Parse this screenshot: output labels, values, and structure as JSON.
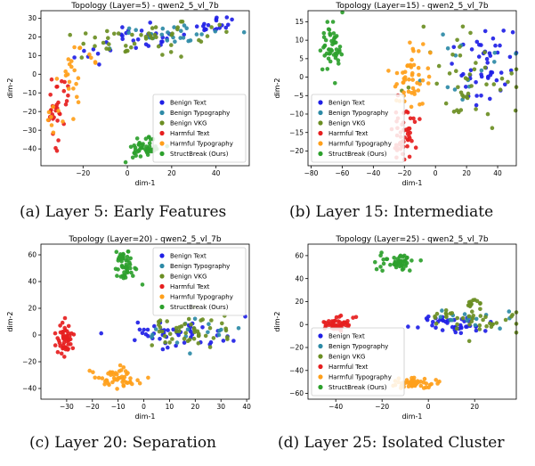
{
  "captions": [
    "(a) Layer 5: Early Features",
    "(b) Layer 15: Intermediate",
    "(c) Layer 20: Separation",
    "(d) Layer 25: Isolated Cluster"
  ],
  "legend_labels": [
    "Benign Text",
    "Benign Typography",
    "Benign VKG",
    "Harmful Text",
    "Harmful Typography",
    "StructBreak (Ours)"
  ],
  "series_colors": [
    "#1f1fe6",
    "#2d8aa6",
    "#6b8e23",
    "#e61e1e",
    "#ff9f1a",
    "#2ca02c"
  ],
  "chart_data": [
    {
      "type": "scatter",
      "title": "Topology (Layer=5) - qwen2_5_vl_7b",
      "xlabel": "dim-1",
      "ylabel": "dim-2",
      "xlim": [
        -39,
        55
      ],
      "ylim": [
        -49,
        34
      ],
      "xticks": [
        -20,
        0,
        20,
        40
      ],
      "yticks": [
        -40,
        -30,
        -20,
        -10,
        0,
        10,
        20,
        30
      ],
      "legend_position": "lower-right",
      "series": [
        {
          "name": "Benign Text",
          "clusters": [
            {
              "cx": 5,
              "cy": 19,
              "sx": 11,
              "sy": 3.5,
              "n": 26
            },
            {
              "cx": 40,
              "cy": 26,
              "sx": 6,
              "sy": 2.5,
              "n": 18
            },
            {
              "cx": -18,
              "cy": 12,
              "sx": 4,
              "sy": 3,
              "n": 6
            }
          ]
        },
        {
          "name": "Benign Typography",
          "clusters": [
            {
              "cx": 20,
              "cy": 22,
              "sx": 14,
              "sy": 3,
              "n": 26
            }
          ]
        },
        {
          "name": "Benign VKG",
          "clusters": [
            {
              "cx": 15,
              "cy": 20,
              "sx": 17,
              "sy": 4,
              "n": 40
            },
            {
              "cx": -5,
              "cy": 15,
              "sx": 6,
              "sy": 3,
              "n": 8
            }
          ]
        },
        {
          "name": "Harmful Text",
          "clusters": [
            {
              "cx": -33,
              "cy": -22,
              "sx": 2.2,
              "sy": 7,
              "n": 22
            },
            {
              "cx": -29,
              "cy": -8,
              "sx": 2,
              "sy": 3,
              "n": 10
            }
          ]
        },
        {
          "name": "Harmful Typography",
          "clusters": [
            {
              "cx": -27,
              "cy": -2,
              "sx": 3,
              "sy": 7,
              "n": 16
            },
            {
              "cx": -33,
              "cy": -25,
              "sx": 1.8,
              "sy": 5,
              "n": 8
            },
            {
              "cx": -20,
              "cy": 8,
              "sx": 3,
              "sy": 4,
              "n": 8
            }
          ]
        },
        {
          "name": "StructBreak (Ours)",
          "clusters": [
            {
              "cx": 8,
              "cy": -40,
              "sx": 4.5,
              "sy": 2.5,
              "n": 50
            }
          ]
        }
      ]
    },
    {
      "type": "scatter",
      "title": "Topology (Layer=15) - qwen2_5_vl_7b",
      "xlabel": "dim-1",
      "ylabel": "dim-2",
      "xlim": [
        -82,
        52
      ],
      "ylim": [
        -24,
        18
      ],
      "xticks": [
        -80,
        -60,
        -40,
        -20,
        0,
        20,
        40
      ],
      "yticks": [
        -20,
        -15,
        -10,
        -5,
        0,
        5,
        10,
        15
      ],
      "legend_position": "lower-left",
      "series": [
        {
          "name": "Benign Text",
          "clusters": [
            {
              "cx": 32,
              "cy": 4,
              "sx": 9,
              "sy": 5,
              "n": 50
            }
          ]
        },
        {
          "name": "Benign Typography",
          "clusters": [
            {
              "cx": 25,
              "cy": 2,
              "sx": 12,
              "sy": 6,
              "n": 14
            }
          ]
        },
        {
          "name": "Benign VKG",
          "clusters": [
            {
              "cx": 20,
              "cy": 0,
              "sx": 16,
              "sy": 6,
              "n": 46
            }
          ]
        },
        {
          "name": "Harmful Text",
          "clusters": [
            {
              "cx": -20,
              "cy": -16,
              "sx": 4,
              "sy": 3.5,
              "n": 50
            }
          ]
        },
        {
          "name": "Harmful Typography",
          "clusters": [
            {
              "cx": -15,
              "cy": 0,
              "sx": 6,
              "sy": 4.5,
              "n": 50
            }
          ]
        },
        {
          "name": "StructBreak (Ours)",
          "clusters": [
            {
              "cx": -68,
              "cy": 9,
              "sx": 4,
              "sy": 3.5,
              "n": 50
            }
          ]
        }
      ]
    },
    {
      "type": "scatter",
      "title": "Topology (Layer=20) - qwen2_5_vl_7b",
      "xlabel": "dim-1",
      "ylabel": "dim-2",
      "xlim": [
        -40,
        41
      ],
      "ylim": [
        -48,
        68
      ],
      "xticks": [
        -30,
        -20,
        -10,
        0,
        10,
        20,
        30,
        40
      ],
      "yticks": [
        -40,
        -20,
        0,
        20,
        40,
        60
      ],
      "legend_position": "upper-right",
      "series": [
        {
          "name": "Benign Text",
          "clusters": [
            {
              "cx": 13,
              "cy": 1,
              "sx": 11,
              "sy": 5.5,
              "n": 50
            }
          ]
        },
        {
          "name": "Benign Typography",
          "clusters": [
            {
              "cx": 18,
              "cy": 2,
              "sx": 11,
              "sy": 6,
              "n": 16
            }
          ]
        },
        {
          "name": "Benign VKG",
          "clusters": [
            {
              "cx": 20,
              "cy": 3,
              "sx": 11,
              "sy": 6,
              "n": 48
            }
          ]
        },
        {
          "name": "Harmful Text",
          "clusters": [
            {
              "cx": -31,
              "cy": -3,
              "sx": 1.6,
              "sy": 7,
              "n": 50
            }
          ]
        },
        {
          "name": "Harmful Typography",
          "clusters": [
            {
              "cx": -11,
              "cy": -32,
              "sx": 4.5,
              "sy": 3.5,
              "n": 50
            }
          ]
        },
        {
          "name": "StructBreak (Ours)",
          "clusters": [
            {
              "cx": -7,
              "cy": 52,
              "sx": 2,
              "sy": 6,
              "n": 50
            }
          ]
        }
      ]
    },
    {
      "type": "scatter",
      "title": "Topology (Layer=25) - qwen2_5_vl_7b",
      "xlabel": "dim-1",
      "ylabel": "dim-2",
      "xlim": [
        -52,
        38
      ],
      "ylim": [
        -65,
        70
      ],
      "xticks": [
        -40,
        -20,
        0,
        20
      ],
      "yticks": [
        -60,
        -40,
        -20,
        0,
        20,
        40,
        60
      ],
      "legend_position": "lower-left",
      "series": [
        {
          "name": "Benign Text",
          "clusters": [
            {
              "cx": 10,
              "cy": 0,
              "sx": 7,
              "sy": 4,
              "n": 44
            }
          ]
        },
        {
          "name": "Benign Typography",
          "clusters": [
            {
              "cx": 20,
              "cy": 4,
              "sx": 9,
              "sy": 7,
              "n": 16
            }
          ]
        },
        {
          "name": "Benign VKG",
          "clusters": [
            {
              "cx": 20,
              "cy": 5,
              "sx": 9,
              "sy": 8,
              "n": 40
            },
            {
              "cx": 20,
              "cy": 18,
              "sx": 2,
              "sy": 2.5,
              "n": 12
            }
          ]
        },
        {
          "name": "Harmful Text",
          "clusters": [
            {
              "cx": -40,
              "cy": 0,
              "sx": 3,
              "sy": 3.5,
              "n": 50
            }
          ]
        },
        {
          "name": "Harmful Typography",
          "clusters": [
            {
              "cx": -5,
              "cy": -51,
              "sx": 5,
              "sy": 2.5,
              "n": 50
            }
          ]
        },
        {
          "name": "StructBreak (Ours)",
          "clusters": [
            {
              "cx": -14,
              "cy": 54,
              "sx": 4,
              "sy": 3.5,
              "n": 50
            }
          ]
        }
      ]
    }
  ]
}
